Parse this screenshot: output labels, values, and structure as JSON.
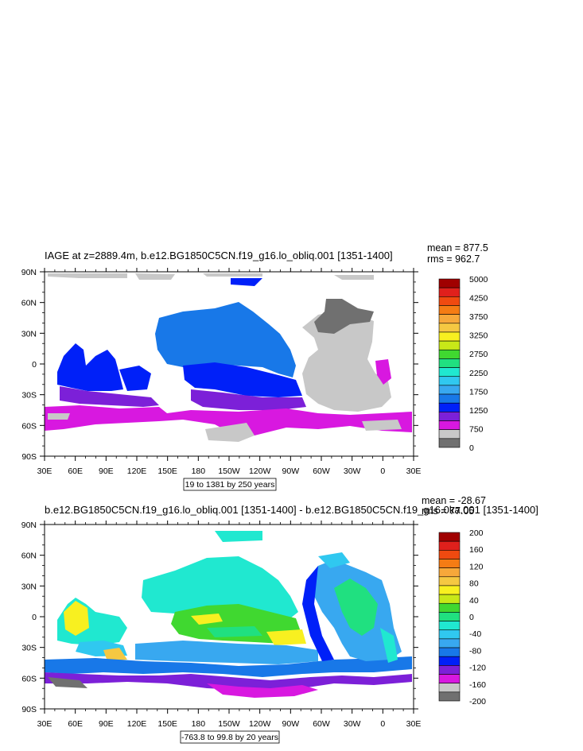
{
  "chart_data": [
    {
      "type": "heatmap",
      "title": "IAGE at z=2889.4m, b.e12.BG1850C5CN.f19_g16.lo_obliq.001 [1351-1400]",
      "stats": {
        "mean": "mean = 877.5",
        "rms": "rms = 962.7"
      },
      "x_ticks": [
        "30E",
        "60E",
        "90E",
        "120E",
        "150E",
        "180",
        "150W",
        "120W",
        "90W",
        "60W",
        "30W",
        "0",
        "30E"
      ],
      "y_ticks": [
        "90N",
        "60N",
        "30N",
        "0",
        "30S",
        "60S",
        "90S"
      ],
      "contour_info": "19 to 1381 by 250 years",
      "colorbar": {
        "labels": [
          "5000",
          "4250",
          "3750",
          "3250",
          "2750",
          "2250",
          "1750",
          "1250",
          "750",
          "0"
        ],
        "colors": [
          "#a00000",
          "#e0201c",
          "#f04a10",
          "#f57c14",
          "#f7a83a",
          "#f5c842",
          "#f8f020",
          "#c8e818",
          "#40d830",
          "#20e080",
          "#20e8d0",
          "#30c8f0",
          "#38a8f0",
          "#1878e8",
          "#0020f8",
          "#7c20d8",
          "#d818e0",
          "#c8c8c8",
          "#707070"
        ]
      }
    },
    {
      "type": "heatmap",
      "title": "b.e12.BG1850C5CN.f19_g16.lo_obliq.001 [1351-1400] - b.e12.BG1850C5CN.f19_g16.0ka.001 [1351-1400]",
      "stats": {
        "mean": "mean = -28.67",
        "rms": "rms = 77.05"
      },
      "x_ticks": [
        "30E",
        "60E",
        "90E",
        "120E",
        "150E",
        "180",
        "150W",
        "120W",
        "90W",
        "60W",
        "30W",
        "0",
        "30E"
      ],
      "y_ticks": [
        "90N",
        "60N",
        "30N",
        "0",
        "30S",
        "60S",
        "90S"
      ],
      "contour_info": "-763.8 to 99.8 by 20 years",
      "colorbar": {
        "labels": [
          "200",
          "160",
          "120",
          "80",
          "40",
          "0",
          "-40",
          "-80",
          "-120",
          "-160",
          "-200"
        ],
        "colors": [
          "#a00000",
          "#e0201c",
          "#f04a10",
          "#f57c14",
          "#f7a83a",
          "#f5c842",
          "#f8f020",
          "#c8e818",
          "#40d830",
          "#20e080",
          "#20e8d0",
          "#30c8f0",
          "#38a8f0",
          "#1878e8",
          "#0020f8",
          "#7c20d8",
          "#d818e0",
          "#c8c8c8",
          "#707070"
        ]
      }
    }
  ]
}
